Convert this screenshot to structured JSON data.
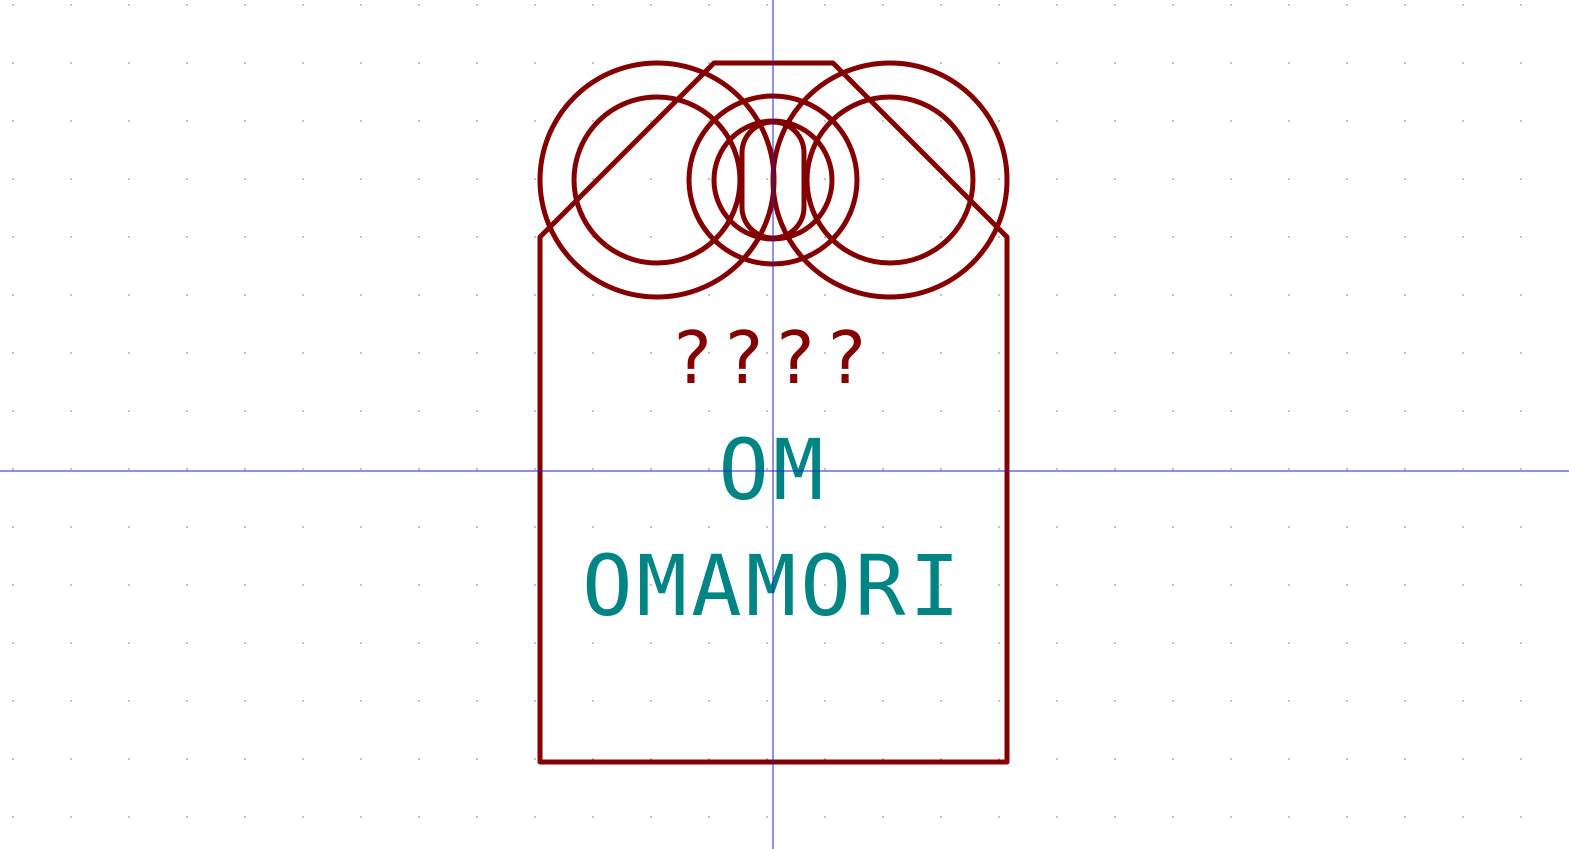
{
  "symbol": {
    "reference": "OM",
    "value": "OMAMORI",
    "unknown_text": "????"
  },
  "colors": {
    "body": "#840000",
    "field_text": "#008484",
    "cursor": "#2323c8",
    "grid_dot": "#b4b4b4",
    "background": "#ffffff"
  }
}
